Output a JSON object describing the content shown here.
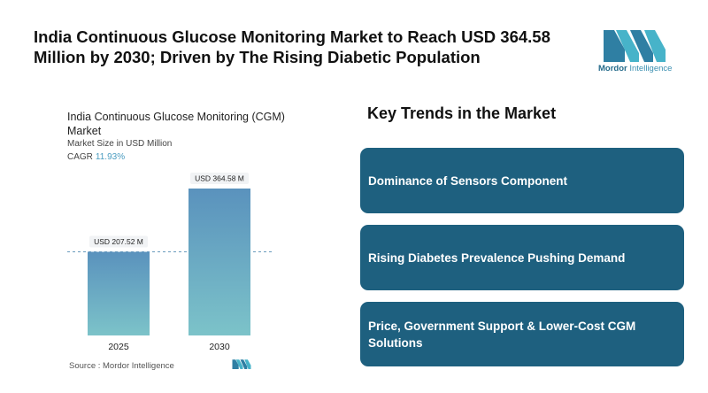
{
  "headline": "India Continuous Glucose Monitoring Market to Reach USD 364.58 Million by 2030; Driven by The Rising Diabetic Population",
  "logo": {
    "brand": "Mordor",
    "suffix": "Intelligence"
  },
  "chart_data": {
    "type": "bar",
    "title": "India Continuous Glucose Monitoring (CGM) Market",
    "subtitle": "Market Size in USD Million",
    "cagr_label": "CAGR",
    "cagr_value": "11.93%",
    "categories": [
      "2025",
      "2030"
    ],
    "values": [
      207.52,
      364.58
    ],
    "data_labels": [
      "USD 207.52 M",
      "USD 364.58 M"
    ],
    "grid": false,
    "colors": {
      "bar_top": "#5a92bd",
      "bar_bottom": "#7cc3c9"
    }
  },
  "source": "Source :  Mordor Intelligence",
  "trends": {
    "title": "Key Trends in the Market",
    "items": [
      "Dominance of Sensors Component",
      "Rising Diabetes Prevalence Pushing Demand",
      "Price, Government Support & Lower-Cost CGM Solutions"
    ]
  }
}
